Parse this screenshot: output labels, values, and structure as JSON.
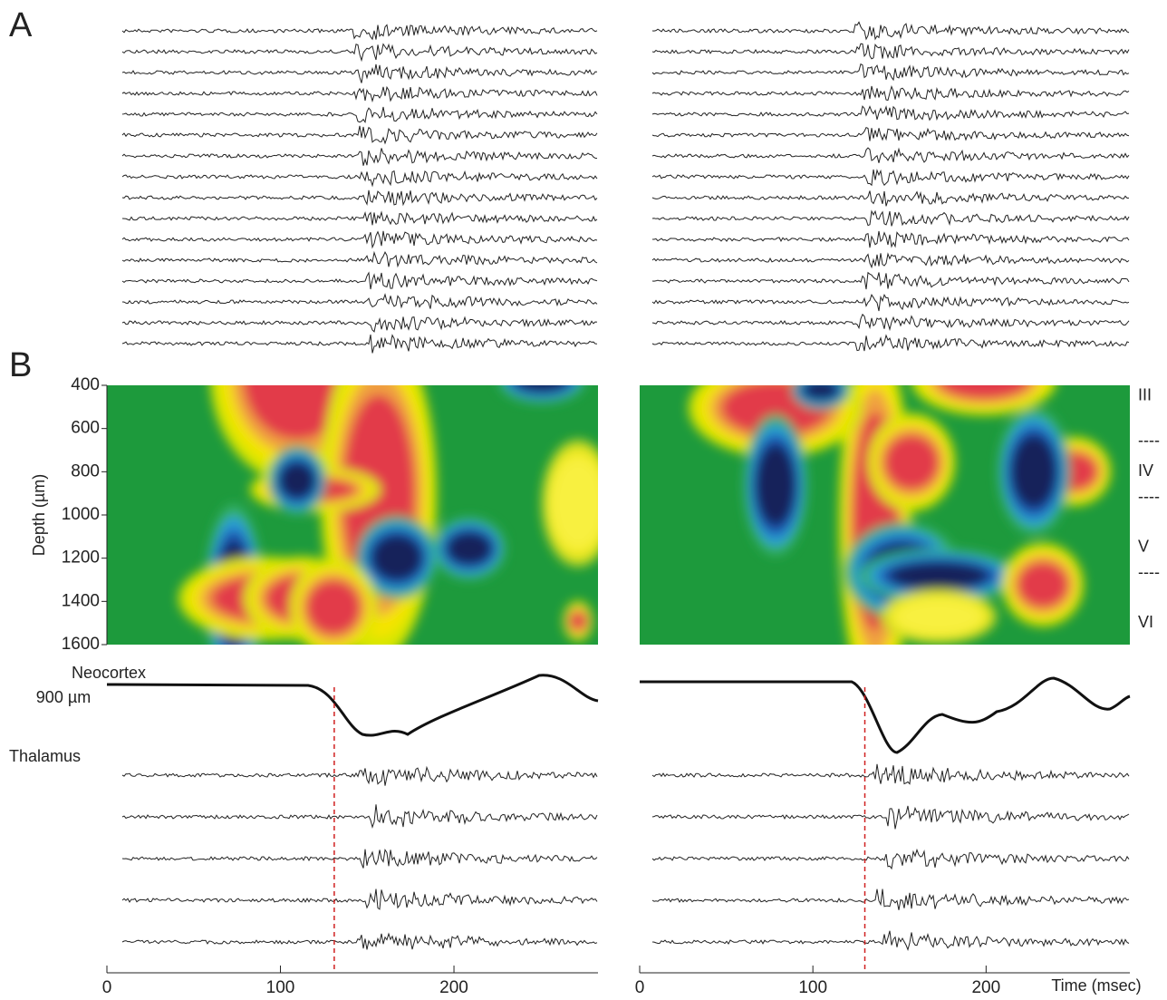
{
  "panel_labels": [
    "A",
    "B"
  ],
  "depth_axis": {
    "label": "Depth (µm)",
    "lim": [
      400,
      1600
    ],
    "ticks": [
      400,
      600,
      800,
      1000,
      1200,
      1400,
      1600
    ]
  },
  "time_axis": {
    "label": "Time (msec)",
    "lim": [
      0,
      283
    ],
    "ticks": [
      0,
      100,
      200
    ]
  },
  "layers": [
    {
      "label": "III",
      "depth": 450
    },
    {
      "label": "----",
      "depth": 660
    },
    {
      "label": "IV",
      "depth": 800
    },
    {
      "label": "----",
      "depth": 920
    },
    {
      "label": "V",
      "depth": 1150
    },
    {
      "label": "----",
      "depth": 1270
    },
    {
      "label": "VI",
      "depth": 1500
    }
  ],
  "neocortex_label": "Neocortex",
  "neocortex_depth": "900 µm",
  "thalamus_label": "Thalamus",
  "onset_ms": [
    131,
    130
  ]
}
